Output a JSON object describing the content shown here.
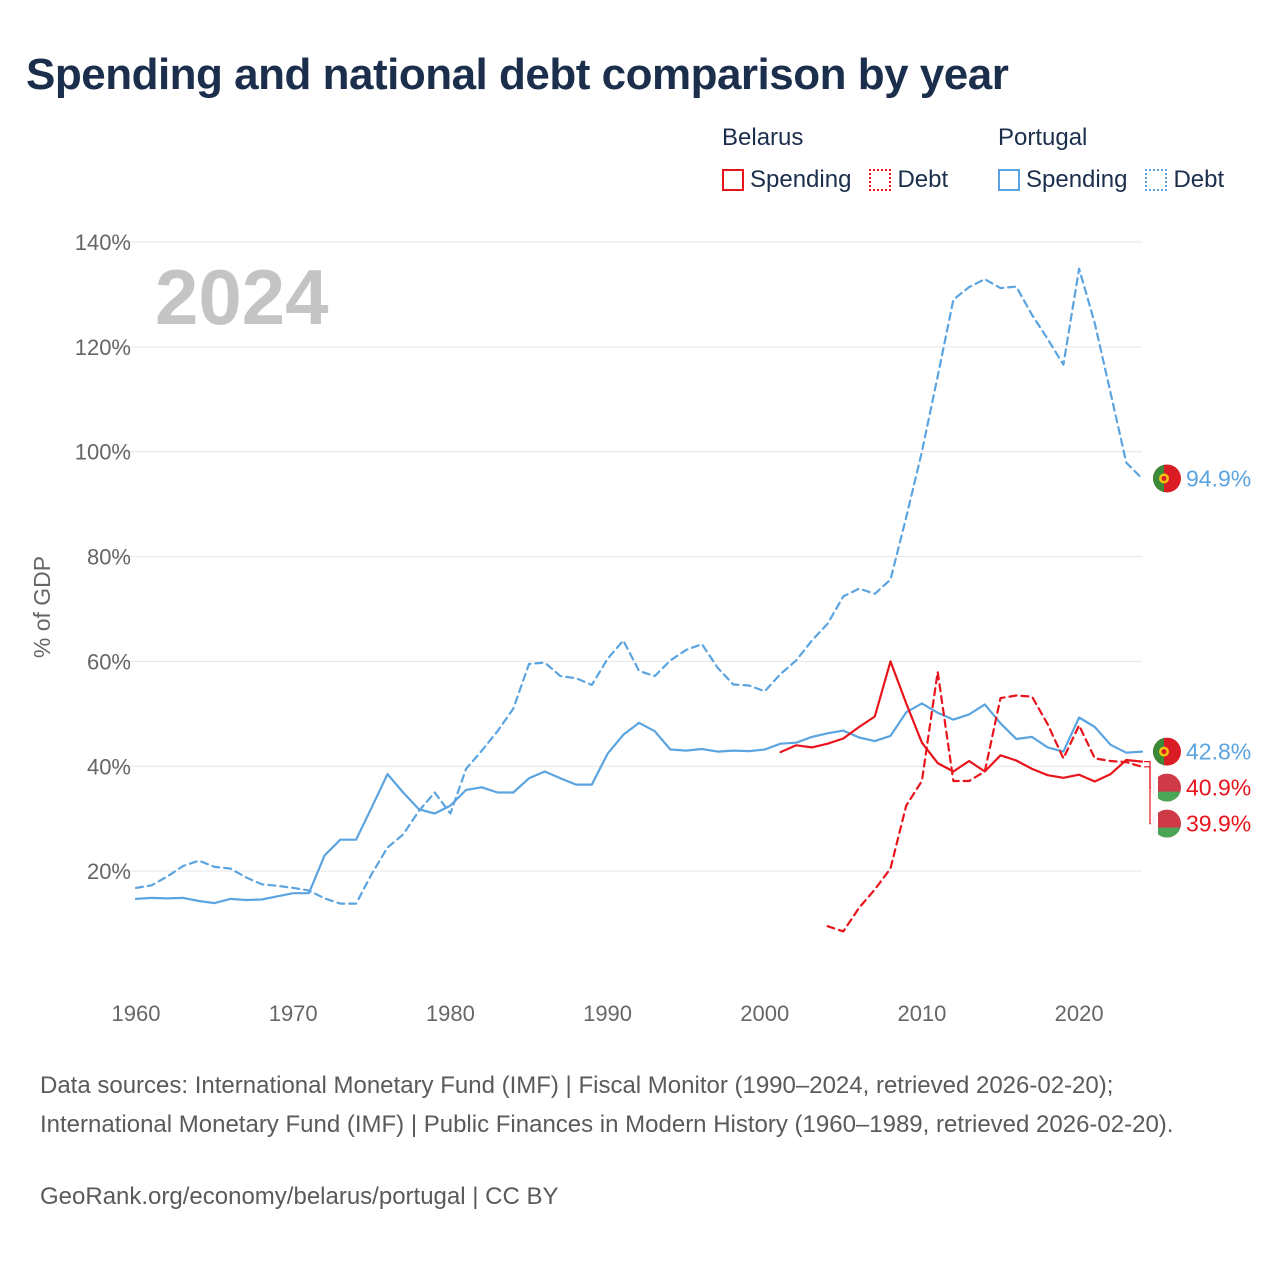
{
  "title": "Spending and national debt comparison by year",
  "legend": {
    "groups": [
      {
        "country": "Belarus",
        "items": [
          {
            "label": "Spending",
            "style": "solid",
            "color": "#e8141c"
          },
          {
            "label": "Debt",
            "style": "dotted",
            "color": "#e8141c"
          }
        ]
      },
      {
        "country": "Portugal",
        "items": [
          {
            "label": "Spending",
            "style": "solid",
            "color": "#5ba4e0"
          },
          {
            "label": "Debt",
            "style": "dotted",
            "color": "#5ba4e0"
          }
        ]
      }
    ]
  },
  "year_watermark": "2024",
  "colors": {
    "belarus": "#e8141c",
    "portugal": "#5ba4e0",
    "grid": "#e6e6e6",
    "axis_text": "#666666",
    "watermark": "#c4c4c4"
  },
  "chart_data": {
    "type": "line",
    "ylabel": "% of GDP",
    "xlabel": "",
    "xlim": [
      1960,
      2024
    ],
    "ylim": [
      0,
      140
    ],
    "x_ticks": [
      1960,
      1970,
      1980,
      1990,
      2000,
      2010,
      2020
    ],
    "y_ticks": [
      20,
      40,
      60,
      80,
      100,
      120,
      140
    ],
    "y_tick_labels": [
      "20%",
      "40%",
      "60%",
      "80%",
      "100%",
      "120%",
      "140%"
    ],
    "series": [
      {
        "name": "Portugal Debt",
        "country": "Portugal",
        "metric": "Debt",
        "dash": "dashed",
        "color": "#5ba4e0",
        "x": [
          1960,
          1961,
          1962,
          1963,
          1964,
          1965,
          1966,
          1967,
          1968,
          1969,
          1970,
          1971,
          1972,
          1973,
          1974,
          1975,
          1976,
          1977,
          1978,
          1979,
          1980,
          1981,
          1982,
          1983,
          1984,
          1985,
          1986,
          1987,
          1988,
          1989,
          1990,
          1991,
          1992,
          1993,
          1994,
          1995,
          1996,
          1997,
          1998,
          1999,
          2000,
          2001,
          2002,
          2003,
          2004,
          2005,
          2006,
          2007,
          2008,
          2009,
          2010,
          2011,
          2012,
          2013,
          2014,
          2015,
          2016,
          2017,
          2018,
          2019,
          2020,
          2021,
          2022,
          2023,
          2024
        ],
        "values": [
          16.8,
          17.3,
          19.0,
          21.0,
          22.0,
          20.8,
          20.5,
          18.8,
          17.5,
          17.2,
          16.8,
          16.3,
          14.8,
          13.8,
          13.8,
          19.5,
          24.5,
          27.0,
          31.5,
          35.0,
          31.0,
          39.5,
          43.0,
          46.7,
          51.0,
          59.5,
          59.8,
          57.2,
          56.8,
          55.5,
          60.5,
          64.0,
          58.2,
          57.2,
          60.2,
          62.2,
          63.3,
          58.8,
          55.6,
          55.4,
          54.3,
          57.6,
          60.2,
          64.0,
          67.2,
          72.4,
          73.9,
          72.9,
          75.6,
          87.5,
          100.0,
          114.4,
          129.0,
          131.4,
          132.9,
          131.2,
          131.5,
          126.1,
          121.5,
          116.6,
          134.9,
          124.5,
          111.2,
          97.9,
          94.9
        ]
      },
      {
        "name": "Portugal Spending",
        "country": "Portugal",
        "metric": "Spending",
        "dash": "solid",
        "color": "#5ba4e0",
        "x": [
          1960,
          1961,
          1962,
          1963,
          1964,
          1965,
          1966,
          1967,
          1968,
          1969,
          1970,
          1971,
          1972,
          1973,
          1974,
          1975,
          1976,
          1977,
          1978,
          1979,
          1980,
          1981,
          1982,
          1983,
          1984,
          1985,
          1986,
          1987,
          1988,
          1989,
          1990,
          1991,
          1992,
          1993,
          1994,
          1995,
          1996,
          1997,
          1998,
          1999,
          2000,
          2001,
          2002,
          2003,
          2004,
          2005,
          2006,
          2007,
          2008,
          2009,
          2010,
          2011,
          2012,
          2013,
          2014,
          2015,
          2016,
          2017,
          2018,
          2019,
          2020,
          2021,
          2022,
          2023,
          2024
        ],
        "values": [
          14.7,
          14.9,
          14.8,
          14.9,
          14.3,
          13.9,
          14.7,
          14.5,
          14.6,
          15.2,
          15.8,
          15.8,
          23.0,
          26.0,
          26.0,
          32.2,
          38.5,
          35.0,
          31.8,
          31.0,
          32.5,
          35.5,
          36.0,
          35.0,
          35.0,
          37.7,
          39.0,
          37.7,
          36.5,
          36.5,
          42.4,
          46.0,
          48.3,
          46.7,
          43.2,
          43.0,
          43.3,
          42.8,
          43.0,
          42.9,
          43.2,
          44.3,
          44.5,
          45.6,
          46.3,
          46.8,
          45.5,
          44.8,
          45.8,
          50.3,
          52.0,
          50.2,
          48.9,
          49.9,
          51.8,
          48.2,
          45.2,
          45.6,
          43.6,
          42.8,
          49.3,
          47.5,
          44.1,
          42.6,
          42.8
        ]
      },
      {
        "name": "Belarus Spending",
        "country": "Belarus",
        "metric": "Spending",
        "dash": "solid",
        "color": "#e8141c",
        "x": [
          2001,
          2002,
          2003,
          2004,
          2005,
          2006,
          2007,
          2008,
          2009,
          2010,
          2011,
          2012,
          2013,
          2014,
          2015,
          2016,
          2017,
          2018,
          2019,
          2020,
          2021,
          2022,
          2023,
          2024
        ],
        "values": [
          42.7,
          44.0,
          43.6,
          44.3,
          45.3,
          47.5,
          49.5,
          60.0,
          52.0,
          44.5,
          40.6,
          39.0,
          41.0,
          39.0,
          42.1,
          41.1,
          39.5,
          38.3,
          37.8,
          38.4,
          37.1,
          38.5,
          41.2,
          40.9
        ]
      },
      {
        "name": "Belarus Debt",
        "country": "Belarus",
        "metric": "Debt",
        "dash": "dashed",
        "color": "#e8141c",
        "x": [
          2004,
          2005,
          2006,
          2007,
          2008,
          2009,
          2010,
          2011,
          2012,
          2013,
          2014,
          2015,
          2016,
          2017,
          2018,
          2019,
          2020,
          2021,
          2022,
          2023,
          2024
        ],
        "values": [
          9.5,
          8.5,
          13.0,
          16.5,
          20.5,
          32.5,
          37.2,
          58.0,
          37.2,
          37.2,
          39.0,
          53.0,
          53.5,
          53.3,
          48.0,
          41.5,
          47.8,
          41.5,
          41.0,
          40.8,
          39.9
        ]
      }
    ],
    "end_labels": [
      {
        "series": "Portugal Debt",
        "text": "94.9%",
        "color": "#5ba4e0",
        "flag": "portugal"
      },
      {
        "series": "Portugal Spending",
        "text": "42.8%",
        "color": "#5ba4e0",
        "flag": "portugal"
      },
      {
        "series": "Belarus Spending",
        "text": "40.9%",
        "color": "#e8141c",
        "flag": "belarus"
      },
      {
        "series": "Belarus Debt",
        "text": "39.9%",
        "color": "#e8141c",
        "flag": "belarus"
      }
    ]
  },
  "source": "Data sources: International Monetary Fund (IMF) | Fiscal Monitor (1990–2024, retrieved 2026-02-20); International Monetary Fund (IMF) | Public Finances in Modern History (1960–1989, retrieved 2026-02-20).",
  "credit": "GeoRank.org/economy/belarus/portugal | CC BY"
}
